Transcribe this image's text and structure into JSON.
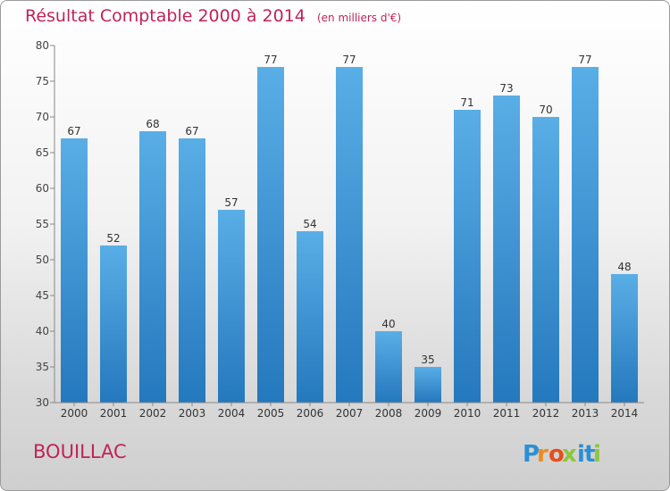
{
  "chart_data": {
    "type": "bar",
    "title": "Résultat Comptable 2000 à 2014",
    "subtitle": "(en milliers d'€)",
    "categories": [
      "2000",
      "2001",
      "2002",
      "2003",
      "2004",
      "2005",
      "2006",
      "2007",
      "2008",
      "2009",
      "2010",
      "2011",
      "2012",
      "2013",
      "2014"
    ],
    "values": [
      67,
      52,
      68,
      67,
      57,
      77,
      54,
      77,
      40,
      35,
      71,
      73,
      70,
      77,
      48
    ],
    "ylim": [
      30,
      80
    ],
    "yticks": [
      30,
      35,
      40,
      45,
      50,
      55,
      60,
      65,
      70,
      75,
      80
    ],
    "xlabel": "",
    "ylabel": "",
    "grid": false,
    "bar_color": "#3a95d8"
  },
  "commune": "BOUILLAC",
  "logo": {
    "text": "Proxiti",
    "letter_colors": [
      "#2b8fd6",
      "#f08a1c",
      "#e84e1b",
      "#8cc63f",
      "#2b8fd6",
      "#2b8fd6",
      "#8cc63f"
    ]
  }
}
